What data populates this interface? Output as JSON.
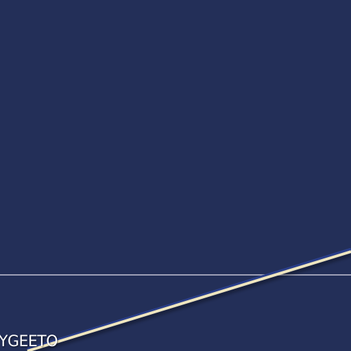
{
  "caption": {
    "text": "YGEETO"
  },
  "colors": {
    "background": "#232f58",
    "horizon": "#b5b5c8",
    "track": "#efe6bf",
    "track_edge": "#2a3f8c"
  }
}
